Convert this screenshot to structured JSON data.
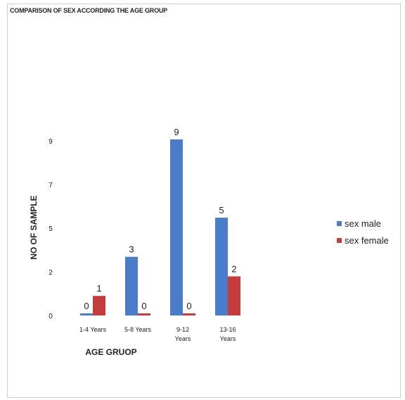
{
  "chart_data": {
    "type": "bar",
    "title": "COMPARISON OF SEX ACCORDING THE AGE GROUP",
    "xlabel": "AGE GRUOP",
    "ylabel": "NO OF SAMPLE",
    "categories": [
      [
        "1-4 Years"
      ],
      [
        "5-8 Years"
      ],
      [
        "9-12",
        "Years"
      ],
      [
        "13-16",
        "Years"
      ]
    ],
    "y_tick_labels": [
      "0",
      "2",
      "5",
      "7",
      "9"
    ],
    "ylim": [
      0,
      9
    ],
    "grid": false,
    "legend_position": "right",
    "series": [
      {
        "name": "sex male",
        "color": "#4a7cc7",
        "values": [
          0,
          3,
          9,
          5
        ],
        "value_labels": [
          "0",
          "3",
          "9",
          "5"
        ]
      },
      {
        "name": "sex female",
        "color": "#c43d3d",
        "values": [
          1,
          0,
          0,
          2
        ],
        "value_labels": [
          "1",
          "0",
          "0",
          "2"
        ]
      }
    ]
  }
}
